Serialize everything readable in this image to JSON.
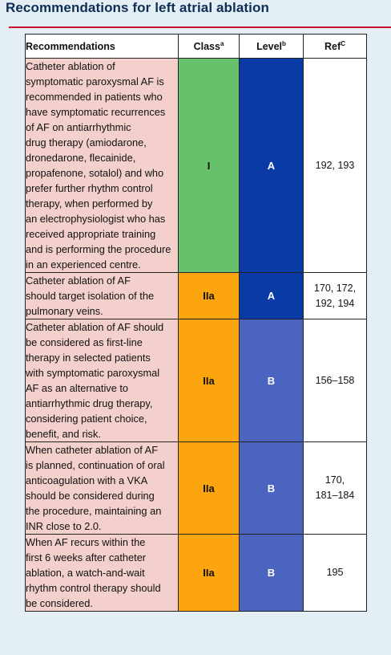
{
  "title": "Recommendations for left atrial ablation",
  "header": {
    "recommendations": "Recommendations",
    "class": "Class",
    "class_sup": "a",
    "level": "Level",
    "level_sup": "b",
    "ref": "Ref",
    "ref_sup": "C"
  },
  "colors": {
    "class_I": "#67c06a",
    "class_IIa": "#fda50f",
    "level_A": "#0a3aa6",
    "level_B": "#4a64c0",
    "text_bg": "#f3d0cc"
  },
  "rows": [
    {
      "lines": [
        "Catheter ablation of",
        "symptomatic paroxysmal AF is",
        "recommended in patients who",
        "have symptomatic recurrences",
        "of AF on antiarrhythmic",
        "drug therapy (amiodarone,",
        "dronedarone, flecainide,",
        "propafenone, sotalol) and who",
        "prefer further rhythm control",
        "therapy, when performed by",
        "an electrophysiologist who has",
        "received appropriate training",
        "and is performing the procedure",
        "in an experienced centre."
      ],
      "class": "I",
      "level": "A",
      "ref_lines": [
        "192, 193"
      ]
    },
    {
      "lines": [
        "Catheter ablation of AF",
        "should target isolation of the",
        "pulmonary veins."
      ],
      "class": "IIa",
      "level": "A",
      "ref_lines": [
        "170, 172,",
        "192, 194"
      ]
    },
    {
      "lines": [
        "Catheter ablation of AF should",
        "be considered as first-line",
        "therapy in selected patients",
        "with symptomatic paroxysmal",
        "AF as an alternative to",
        "antiarrhythmic drug therapy,",
        "considering patient choice,",
        "benefit, and risk."
      ],
      "class": "IIa",
      "level": "B",
      "ref_lines": [
        "156–158"
      ]
    },
    {
      "lines": [
        "When catheter ablation of AF",
        "is planned, continuation of oral",
        "anticoagulation with a VKA",
        "should be considered during",
        "the procedure, maintaining an",
        "INR close to 2.0."
      ],
      "class": "IIa",
      "level": "B",
      "ref_lines": [
        "170,",
        "181–184"
      ]
    },
    {
      "lines": [
        "When AF recurs within the",
        "first 6 weeks after catheter",
        "ablation, a watch-and-wait",
        "rhythm control therapy should",
        "be considered."
      ],
      "class": "IIa",
      "level": "B",
      "ref_lines": [
        "195"
      ]
    }
  ]
}
